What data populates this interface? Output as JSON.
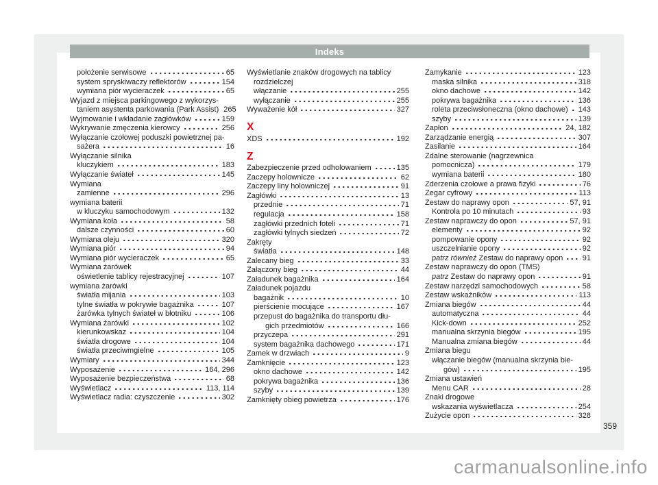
{
  "page": {
    "header_title": "Indeks",
    "page_number": "359",
    "watermark": "carmanualsonline.info"
  },
  "colors": {
    "header_bar": "#a6aeab",
    "scan_background": "#edf0ee",
    "letter_heading_red": "#e30613",
    "text": "#1d1d1b",
    "watermark_gray": "#a0a0a0"
  },
  "index": {
    "columns": [
      [
        {
          "kind": "entry",
          "text": "położenie serwisowe",
          "page": "65",
          "indent": 1
        },
        {
          "kind": "entry",
          "text": "system spryskiwaczy reflektorów",
          "page": "154",
          "indent": 1
        },
        {
          "kind": "entry",
          "text": "wymiana piór wycieraczek",
          "page": "65",
          "indent": 1
        },
        {
          "kind": "entry",
          "text": "Wyjazd z miejsca parkingowego z wykorzys-",
          "indent": 0
        },
        {
          "kind": "entry",
          "text": "taniem asystenta parkowania (Park Assist)",
          "page": "265",
          "indent": 1
        },
        {
          "kind": "entry",
          "text": "Wyjmowanie i wkładanie zagłówków",
          "page": "159",
          "indent": 0
        },
        {
          "kind": "entry",
          "text": "Wykrywanie zmęczenia kierowcy",
          "page": "256",
          "indent": 0
        },
        {
          "kind": "entry",
          "text": "Wyłączanie czołowej poduszki powietrznej pa-",
          "indent": 0
        },
        {
          "kind": "entry",
          "text": "sażera",
          "page": "16",
          "indent": 1
        },
        {
          "kind": "entry",
          "text": "Wyłączanie silnika",
          "indent": 0
        },
        {
          "kind": "entry",
          "text": "kluczykiem",
          "page": "183",
          "indent": 1
        },
        {
          "kind": "entry",
          "text": "Wyłączanie świateł",
          "page": "145",
          "indent": 0
        },
        {
          "kind": "entry",
          "text": "Wymiana",
          "indent": 0
        },
        {
          "kind": "entry",
          "text": "zamienne",
          "page": "296",
          "indent": 1
        },
        {
          "kind": "entry",
          "text": "wymiana baterii",
          "indent": 0
        },
        {
          "kind": "entry",
          "text": "w kluczyku samochodowym",
          "page": "132",
          "indent": 1
        },
        {
          "kind": "entry",
          "text": "Wymiana koła",
          "page": "58",
          "indent": 0
        },
        {
          "kind": "entry",
          "text": "dalsze czynności",
          "page": "60",
          "indent": 1
        },
        {
          "kind": "entry",
          "text": "Wymiana oleju",
          "page": "320",
          "indent": 0
        },
        {
          "kind": "entry",
          "text": "Wymiana piór",
          "page": "94",
          "indent": 0
        },
        {
          "kind": "entry",
          "text": "Wymiana piór wycieraczek",
          "page": "65",
          "indent": 0
        },
        {
          "kind": "entry",
          "text": "Wymiana żarówek",
          "indent": 0
        },
        {
          "kind": "entry",
          "text": "oświetlenie tablicy rejestracyjnej",
          "page": "107",
          "indent": 1
        },
        {
          "kind": "entry",
          "text": "wymiana żarówki",
          "indent": 0
        },
        {
          "kind": "entry",
          "text": "światła mijania",
          "page": "103",
          "indent": 1
        },
        {
          "kind": "entry",
          "text": "tylne światła w pokrywie bagażnika",
          "page": "107",
          "indent": 1
        },
        {
          "kind": "entry",
          "text": "żarówka tylnych świateł w błotniku",
          "page": "106",
          "indent": 1
        },
        {
          "kind": "entry",
          "text": "Wymiana żarówki",
          "page": "102",
          "indent": 0
        },
        {
          "kind": "entry",
          "text": "kierunkowskaz",
          "page": "104",
          "indent": 1
        },
        {
          "kind": "entry",
          "text": "światła drogowe",
          "page": "104",
          "indent": 1
        },
        {
          "kind": "entry",
          "text": "światła przeciwmgielne",
          "page": "105",
          "indent": 1
        },
        {
          "kind": "entry",
          "text": "Wymiary",
          "page": "344",
          "indent": 0
        },
        {
          "kind": "entry",
          "text": "Wyposażenie",
          "page": "164, 296",
          "indent": 0
        },
        {
          "kind": "entry",
          "text": "Wyposażenie bezpieczeństwa",
          "page": "68",
          "indent": 0
        },
        {
          "kind": "entry",
          "text": "Wyświetlacz",
          "page": "113, 114",
          "indent": 0
        },
        {
          "kind": "entry",
          "text": "Wyświetlacz radia: czyszczenie",
          "page": "302",
          "indent": 0
        }
      ],
      [
        {
          "kind": "entry",
          "text": "Wyświetlanie znaków drogowych na tablicy",
          "indent": 0
        },
        {
          "kind": "entry",
          "text": "rozdzielczej",
          "indent": 1
        },
        {
          "kind": "entry",
          "text": "włączanie",
          "page": "255",
          "indent": 1
        },
        {
          "kind": "entry",
          "text": "wyłączanie",
          "page": "255",
          "indent": 1
        },
        {
          "kind": "entry",
          "text": "Wyważenie kół",
          "page": "327",
          "indent": 0
        },
        {
          "kind": "letter",
          "text": "X"
        },
        {
          "kind": "entry",
          "text": "XDS",
          "page": "192",
          "indent": 0
        },
        {
          "kind": "letter",
          "text": "Z"
        },
        {
          "kind": "entry",
          "text": "Zabezpieczenie przed odholowaniem",
          "page": "135",
          "indent": 0
        },
        {
          "kind": "entry",
          "text": "Zaczepy holownicze",
          "page": "62",
          "indent": 0
        },
        {
          "kind": "entry",
          "text": "Zaczepy liny holowniczej",
          "page": "91",
          "indent": 0
        },
        {
          "kind": "entry",
          "text": "Zagłówki",
          "page": "13",
          "indent": 0
        },
        {
          "kind": "entry",
          "text": "przednie",
          "page": "71",
          "indent": 1
        },
        {
          "kind": "entry",
          "text": "regulacja",
          "page": "158",
          "indent": 1
        },
        {
          "kind": "entry",
          "text": "zagłówki przednich foteli",
          "page": "71",
          "indent": 1
        },
        {
          "kind": "entry",
          "text": "zagłówki tylnych siedzeń",
          "page": "72",
          "indent": 1
        },
        {
          "kind": "entry",
          "text": "Zakręty",
          "indent": 0
        },
        {
          "kind": "entry",
          "text": "światła",
          "page": "148",
          "indent": 1
        },
        {
          "kind": "entry",
          "text": "Zalecany bieg",
          "page": "33",
          "indent": 0
        },
        {
          "kind": "entry",
          "text": "Załączony bieg",
          "page": "44",
          "indent": 0
        },
        {
          "kind": "entry",
          "text": "Załadunek bagażnika",
          "page": "164",
          "indent": 0
        },
        {
          "kind": "entry",
          "text": "Załadunek pojazdu",
          "indent": 0
        },
        {
          "kind": "entry",
          "text": "bagażnik",
          "page": "10",
          "indent": 1
        },
        {
          "kind": "entry",
          "text": "pierścienie mocujące",
          "page": "167",
          "indent": 1
        },
        {
          "kind": "entry",
          "text": "przepust do bagażnika do transportu dłu-",
          "indent": 1
        },
        {
          "kind": "entry",
          "text": "gich przedmiotów",
          "page": "166",
          "indent": 2
        },
        {
          "kind": "entry",
          "text": "przyczepa",
          "page": "291",
          "indent": 1
        },
        {
          "kind": "entry",
          "text": "system bagażnika dachowego",
          "page": "171",
          "indent": 1
        },
        {
          "kind": "entry",
          "text": "Zamek w drzwiach",
          "page": "9",
          "indent": 0
        },
        {
          "kind": "entry",
          "text": "Zamknięcie",
          "page": "123",
          "indent": 0
        },
        {
          "kind": "entry",
          "text": "okno dachowe",
          "page": "142",
          "indent": 1
        },
        {
          "kind": "entry",
          "text": "pokrywa bagażnika",
          "page": "136",
          "indent": 1
        },
        {
          "kind": "entry",
          "text": "szyby",
          "page": "139",
          "indent": 1
        },
        {
          "kind": "entry",
          "text": "Zamknięty obieg powietrza",
          "page": "176",
          "indent": 0
        }
      ],
      [
        {
          "kind": "entry",
          "text": "Zamykanie",
          "page": "123",
          "indent": 0
        },
        {
          "kind": "entry",
          "text": "maska silnika",
          "page": "318",
          "indent": 1
        },
        {
          "kind": "entry",
          "text": "okno dachowe",
          "page": "142",
          "indent": 1
        },
        {
          "kind": "entry",
          "text": "pokrywa bagażnika",
          "page": "136",
          "indent": 1
        },
        {
          "kind": "entry",
          "text": "roleta przeciwsłoneczna (okno dachowe)",
          "page": "143",
          "indent": 1
        },
        {
          "kind": "entry",
          "text": "szyby",
          "page": "139",
          "indent": 1
        },
        {
          "kind": "entry",
          "text": "Zapłon",
          "page": "24, 182",
          "indent": 0
        },
        {
          "kind": "entry",
          "text": "Zarządzanie energią",
          "page": "307",
          "indent": 0
        },
        {
          "kind": "entry",
          "text": "Zasilanie",
          "page": "164",
          "indent": 0
        },
        {
          "kind": "entry",
          "text": "Zdalne sterowanie (nagrzewnica",
          "indent": 0
        },
        {
          "kind": "entry",
          "text": "pomocnicza)",
          "page": "179",
          "indent": 1
        },
        {
          "kind": "entry",
          "text": "wymiana baterii",
          "page": "180",
          "indent": 1
        },
        {
          "kind": "entry",
          "text": "Zderzenia czołowe a prawa fizyki",
          "page": "76",
          "indent": 0
        },
        {
          "kind": "entry",
          "text": "Zegar cyfrowy",
          "page": "113",
          "indent": 0
        },
        {
          "kind": "entry",
          "text": "Zestaw do naprawy opon",
          "page": "57, 91",
          "indent": 0
        },
        {
          "kind": "entry",
          "text": "Kontrola po 10 minutach",
          "page": "93",
          "indent": 1
        },
        {
          "kind": "entry",
          "text": "Zestaw naprawczy do opon",
          "page": "57, 91",
          "indent": 0
        },
        {
          "kind": "entry",
          "text": "elementy",
          "page": "92",
          "indent": 1
        },
        {
          "kind": "entry",
          "text": "pompowanie opony",
          "page": "92",
          "indent": 1
        },
        {
          "kind": "entry",
          "text": "uszczelnianie opony",
          "page": "92",
          "indent": 1
        },
        {
          "kind": "entry",
          "italic": "patrz również",
          "text": "Zestaw do naprawy opon",
          "page": "91",
          "indent": 1
        },
        {
          "kind": "entry",
          "text": "Zestaw naprawczy do opon (TMS)",
          "indent": 0
        },
        {
          "kind": "entry",
          "italic": "patrz",
          "text": "Zestaw do naprawy opon",
          "page": "91",
          "indent": 1
        },
        {
          "kind": "entry",
          "text": "Zestaw narzędzi samochodowych",
          "page": "58",
          "indent": 0
        },
        {
          "kind": "entry",
          "text": "Zestaw wskaźników",
          "page": "113",
          "indent": 0
        },
        {
          "kind": "entry",
          "text": "Zmiana biegów",
          "page": "44",
          "indent": 0
        },
        {
          "kind": "entry",
          "text": "automatyczna",
          "page": "44",
          "indent": 1
        },
        {
          "kind": "entry",
          "text": "Kick-down",
          "page": "252",
          "indent": 1
        },
        {
          "kind": "entry",
          "text": "manualna skrzynia biegów",
          "page": "195",
          "indent": 1
        },
        {
          "kind": "entry",
          "text": "Manualna zmiana biegów",
          "page": "44",
          "indent": 1
        },
        {
          "kind": "entry",
          "text": "Zmiana biegu",
          "indent": 0
        },
        {
          "kind": "entry",
          "text": "włączanie biegów (manualna skrzynia bie-",
          "indent": 1
        },
        {
          "kind": "entry",
          "text": "gów)",
          "page": "195",
          "indent": 2
        },
        {
          "kind": "entry",
          "text": "Zmiana ustawień",
          "indent": 0
        },
        {
          "kind": "entry",
          "text": "Menu CAR",
          "page": "28",
          "indent": 1
        },
        {
          "kind": "entry",
          "text": "Znaki drogowe",
          "indent": 0
        },
        {
          "kind": "entry",
          "text": "wskazania wyświetlacza",
          "page": "254",
          "indent": 1
        },
        {
          "kind": "entry",
          "text": "Zużycie opon",
          "page": "328",
          "indent": 0
        }
      ]
    ]
  }
}
